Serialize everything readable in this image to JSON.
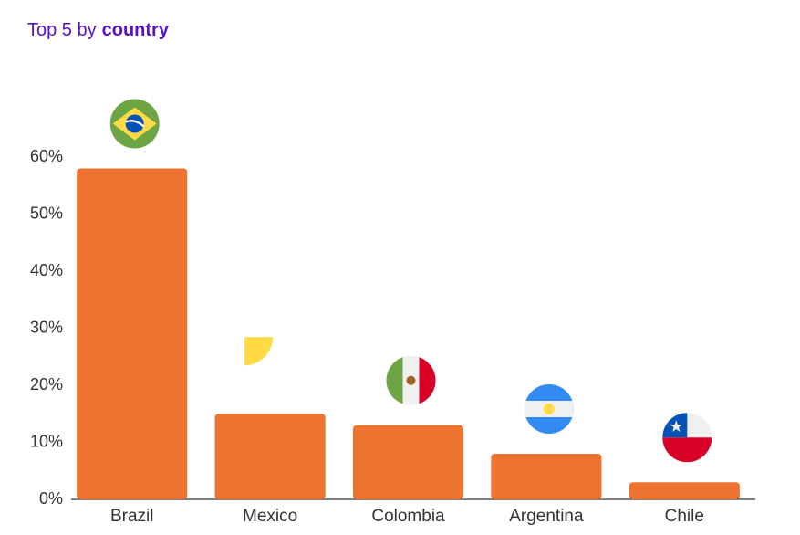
{
  "chart_data": {
    "type": "bar",
    "title": "Top 5 by",
    "title_bold": "country",
    "categories": [
      "Brazil",
      "Mexico",
      "Colombia",
      "Argentina",
      "Chile"
    ],
    "values": [
      58,
      15,
      13,
      8,
      3
    ],
    "color": "#ee7330",
    "ylim": [
      0,
      60
    ],
    "yticks": [
      {
        "value": 0,
        "label": "0%"
      },
      {
        "value": 10,
        "label": "10%"
      },
      {
        "value": 20,
        "label": "20%"
      },
      {
        "value": 30,
        "label": "30%"
      },
      {
        "value": 40,
        "label": "40%"
      },
      {
        "value": 50,
        "label": "50%"
      },
      {
        "value": 60,
        "label": "60%"
      }
    ]
  }
}
